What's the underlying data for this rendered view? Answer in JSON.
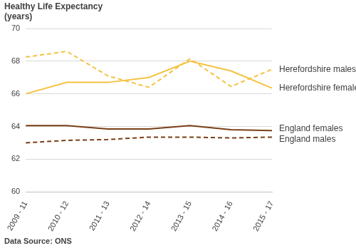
{
  "chart_data": {
    "type": "line",
    "y_label": "Healthy Life Expectancy (years)",
    "source": "Data Source: ONS",
    "categories": [
      "2009 - 11",
      "2010 - 12",
      "2011 - 13",
      "2012 - 14",
      "2013 - 15",
      "2014 - 16",
      "2015 - 17"
    ],
    "series": [
      {
        "name": "Herefordshire males",
        "color": "#f5c242",
        "line_style": "dashed",
        "values": [
          68.25,
          68.6,
          67.1,
          66.4,
          68.15,
          66.45,
          67.5
        ]
      },
      {
        "name": "Herefordshire females",
        "color": "#f5c242",
        "line_style": "solid",
        "values": [
          66.0,
          66.7,
          66.7,
          67.0,
          68.0,
          67.4,
          66.35
        ]
      },
      {
        "name": "England females",
        "color": "#7b3f17",
        "line_style": "solid",
        "values": [
          64.05,
          64.05,
          63.85,
          63.85,
          64.05,
          63.8,
          63.75
        ]
      },
      {
        "name": "England males",
        "color": "#7b3f17",
        "line_style": "dashed",
        "values": [
          63.0,
          63.15,
          63.2,
          63.35,
          63.35,
          63.3,
          63.35
        ]
      }
    ],
    "ylim": [
      60,
      70
    ],
    "yticks": [
      60,
      62,
      64,
      66,
      68,
      70
    ],
    "grid": true
  }
}
